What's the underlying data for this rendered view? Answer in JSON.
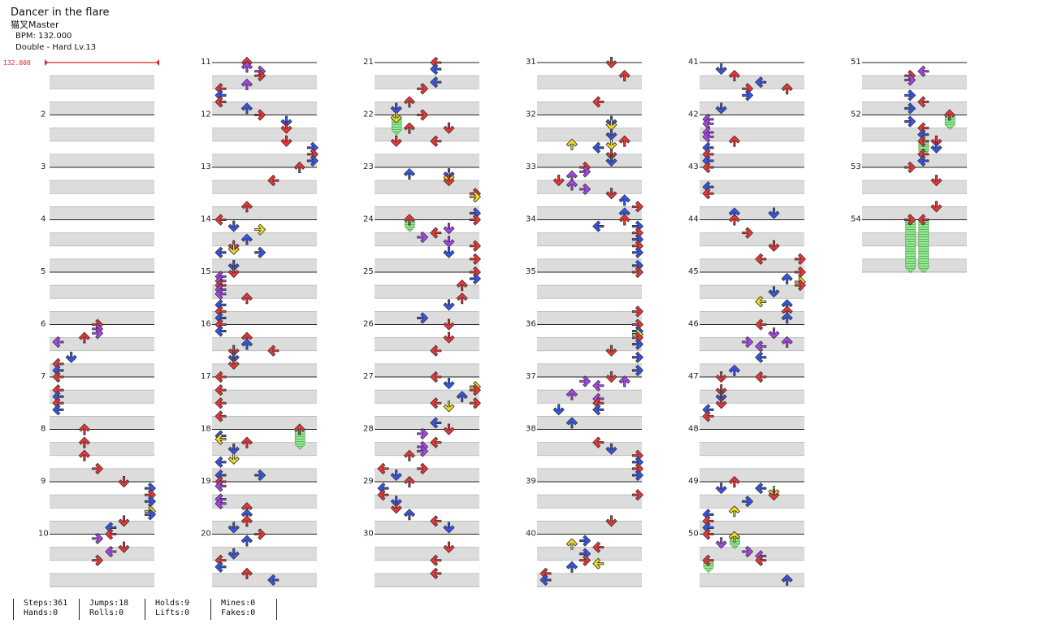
{
  "song": {
    "title": "Dancer in the flare",
    "artist": "猫叉Master",
    "bpm_line": "BPM: 132.000",
    "difficulty_line": "Double - Hard Lv.13"
  },
  "bpm_marker": "132.000",
  "measure_labels": [
    "2",
    "3",
    "4",
    "5",
    "6",
    "7",
    "8",
    "9",
    "10",
    "11",
    "12",
    "13",
    "14",
    "15",
    "16",
    "17",
    "18",
    "19",
    "20",
    "21",
    "22",
    "23",
    "24",
    "25",
    "26",
    "27",
    "28",
    "29",
    "30",
    "31",
    "32",
    "33",
    "34",
    "35",
    "36",
    "37",
    "38",
    "39",
    "40",
    "41",
    "42",
    "43",
    "44",
    "45",
    "46",
    "47",
    "48",
    "49",
    "50",
    "51",
    "52",
    "53",
    "54"
  ],
  "stats": [
    {
      "top": "Steps:361",
      "bottom": "Hands:0"
    },
    {
      "top": "Jumps:18",
      "bottom": "Rolls:0"
    },
    {
      "top": "Holds:9",
      "bottom": "Lifts:0"
    },
    {
      "top": "Mines:0",
      "bottom": "Fakes:0"
    }
  ],
  "colors": {
    "red": "#ee3333",
    "blue": "#3355ee",
    "purple": "#aa44ee",
    "yellow": "#eedd22",
    "hold": "#88dd88",
    "bpm": "#dd2222"
  }
}
